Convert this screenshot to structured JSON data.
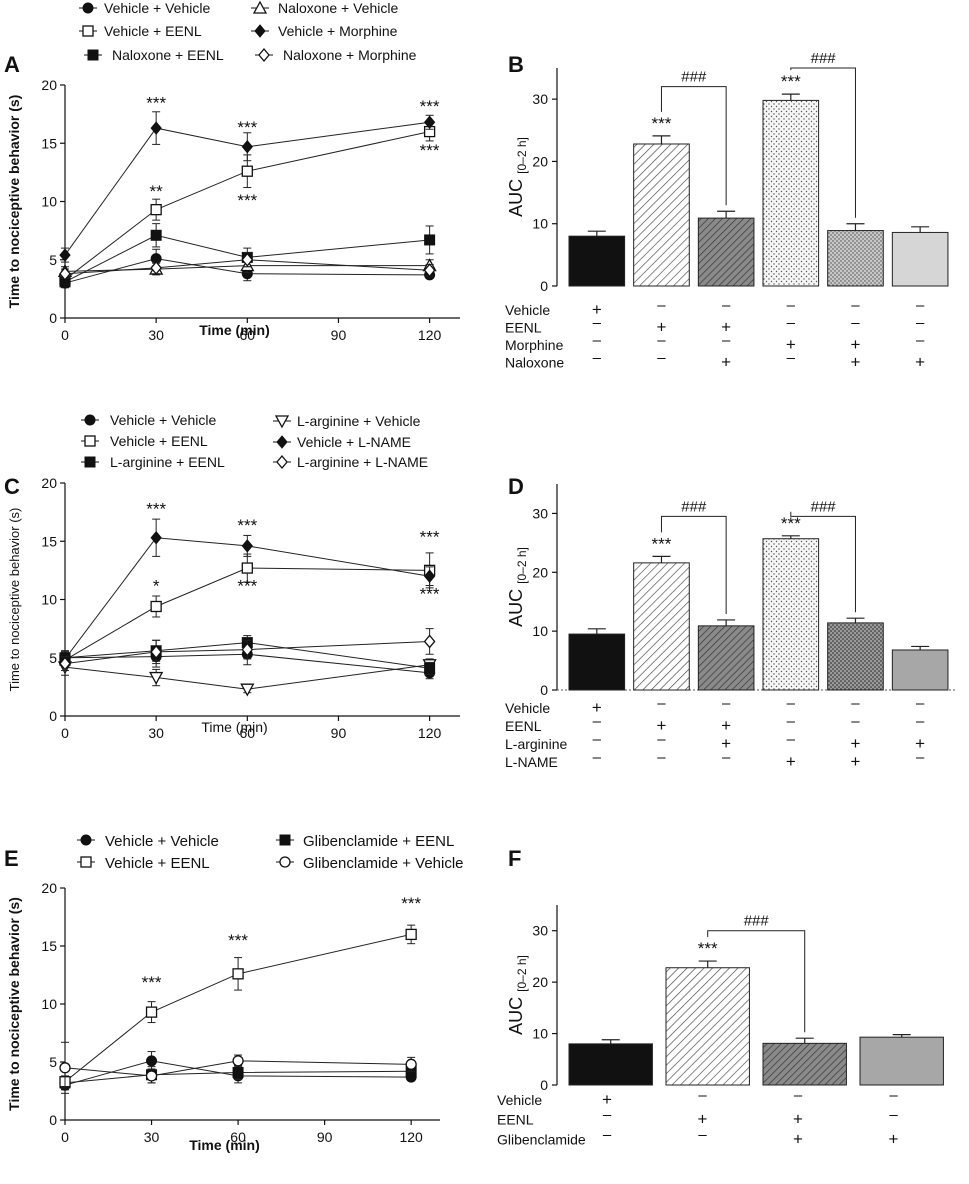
{
  "figure": {
    "panels": [
      {
        "letter": "A",
        "legend": [
          {
            "label": "Vehicle + Vehicle",
            "marker": "filled-circle"
          },
          {
            "label": "Naloxone + Vehicle",
            "marker": "open-triangle-up"
          },
          {
            "label": "Vehicle + EENL",
            "marker": "open-square"
          },
          {
            "label": "Vehicle + Morphine",
            "marker": "filled-diamond"
          },
          {
            "label": "Naloxone + EENL",
            "marker": "filled-square"
          },
          {
            "label": "Naloxone + Morphine",
            "marker": "open-diamond"
          }
        ]
      },
      {
        "letter": "B"
      },
      {
        "letter": "C",
        "legend": [
          {
            "label": "Vehicle + Vehicle",
            "marker": "filled-circle"
          },
          {
            "label": "L-arginine + Vehicle",
            "marker": "open-triangle-down"
          },
          {
            "label": "Vehicle + EENL",
            "marker": "open-square"
          },
          {
            "label": "Vehicle + L-NAME",
            "marker": "filled-diamond"
          },
          {
            "label": "L-arginine + EENL",
            "marker": "filled-square"
          },
          {
            "label": "L-arginine + L-NAME",
            "marker": "open-diamond"
          }
        ]
      },
      {
        "letter": "D"
      },
      {
        "letter": "E",
        "legend": [
          {
            "label": "Vehicle + Vehicle",
            "marker": "filled-circle"
          },
          {
            "label": "Glibenclamide + EENL",
            "marker": "filled-square"
          },
          {
            "label": "Vehicle + EENL",
            "marker": "open-square"
          },
          {
            "label": "Glibenclamide + Vehicle",
            "marker": "open-circle"
          }
        ]
      },
      {
        "letter": "F"
      }
    ]
  },
  "chart_data": [
    {
      "panel": "A",
      "type": "line",
      "xlabel": "Time (min)",
      "ylabel": "Time to nociceptive behavior (s)",
      "x": [
        0,
        30,
        60,
        120
      ],
      "xticks": [
        0,
        30,
        60,
        90,
        120
      ],
      "xlim": [
        0,
        130
      ],
      "ylim": [
        0,
        20
      ],
      "yticks": [
        0,
        5,
        10,
        15,
        20
      ],
      "series": [
        {
          "name": "Vehicle + Vehicle",
          "marker": "filled-circle",
          "values": [
            3.0,
            5.1,
            3.8,
            3.7
          ],
          "errors": [
            0.4,
            0.8,
            0.6,
            0.3
          ]
        },
        {
          "name": "Naloxone + Vehicle",
          "marker": "open-triangle-up",
          "values": [
            4.0,
            4.2,
            4.5,
            4.5
          ],
          "errors": [
            0.4,
            0.5,
            0.6,
            0.5
          ]
        },
        {
          "name": "Vehicle + EENL",
          "marker": "open-square",
          "values": [
            3.3,
            9.3,
            12.6,
            16.0
          ],
          "errors": [
            0.5,
            0.9,
            1.4,
            0.8
          ]
        },
        {
          "name": "Vehicle + Morphine",
          "marker": "filled-diamond",
          "values": [
            5.4,
            16.3,
            14.7,
            16.8
          ],
          "errors": [
            0.6,
            1.4,
            1.2,
            0.6
          ]
        },
        {
          "name": "Naloxone + EENL",
          "marker": "filled-square",
          "values": [
            3.1,
            7.1,
            5.2,
            6.7
          ],
          "errors": [
            0.4,
            1.0,
            0.8,
            1.2
          ]
        },
        {
          "name": "Naloxone + Morphine",
          "marker": "open-diamond",
          "values": [
            3.8,
            4.3,
            5.0,
            4.1
          ],
          "errors": [
            0.4,
            0.5,
            0.6,
            0.5
          ]
        }
      ],
      "annotations": [
        {
          "x": 30,
          "y": 18.0,
          "text": "***"
        },
        {
          "x": 30,
          "y": 10.4,
          "text": "**"
        },
        {
          "x": 60,
          "y": 15.9,
          "text": "***"
        },
        {
          "x": 60,
          "y": 9.6,
          "text": "***"
        },
        {
          "x": 120,
          "y": 17.7,
          "text": "***"
        },
        {
          "x": 120,
          "y": 13.9,
          "text": "***"
        }
      ]
    },
    {
      "panel": "B",
      "type": "bar",
      "ylabel": "AUC",
      "ylabel_subscript": "[0–2 h]",
      "ylim": [
        0,
        35
      ],
      "yticks": [
        0,
        10,
        20,
        30
      ],
      "values": [
        8.0,
        22.8,
        10.9,
        29.8,
        8.9,
        8.6
      ],
      "errors": [
        0.8,
        1.3,
        1.1,
        1.0,
        1.1,
        0.9
      ],
      "fills": [
        "solid-black",
        "hatch-light",
        "hatch-dark",
        "dots",
        "dots-dense",
        "solid-light-gray"
      ],
      "stars": [
        "",
        "***",
        "",
        "***",
        "",
        ""
      ],
      "brackets": [
        {
          "from": 1,
          "to": 2,
          "y": 32.0,
          "text": "###"
        },
        {
          "from": 3,
          "to": 4,
          "y": 35.0,
          "text": "###"
        }
      ],
      "treatments": [
        {
          "name": "Vehicle",
          "signs": [
            "+",
            "-",
            "-",
            "-",
            "-",
            "-"
          ]
        },
        {
          "name": "EENL",
          "signs": [
            "-",
            "+",
            "+",
            "-",
            "-",
            "-"
          ]
        },
        {
          "name": "Morphine",
          "signs": [
            "-",
            "-",
            "-",
            "+",
            "+",
            "-"
          ]
        },
        {
          "name": "Naloxone",
          "signs": [
            "-",
            "-",
            "+",
            "-",
            "+",
            "+"
          ]
        }
      ]
    },
    {
      "panel": "C",
      "type": "line",
      "xlabel": "Time (min)",
      "ylabel": "Time to nociceptive behavior (s)",
      "x": [
        0,
        30,
        60,
        120
      ],
      "xticks": [
        0,
        30,
        60,
        90,
        120
      ],
      "xlim": [
        0,
        130
      ],
      "ylim": [
        0,
        20
      ],
      "yticks": [
        0,
        5,
        10,
        15,
        20
      ],
      "series": [
        {
          "name": "Vehicle + Vehicle",
          "marker": "filled-circle",
          "values": [
            5.0,
            5.1,
            5.3,
            3.7
          ],
          "errors": [
            0.6,
            0.9,
            0.9,
            0.5
          ]
        },
        {
          "name": "L-arginine + Vehicle",
          "marker": "open-triangle-down",
          "values": [
            4.2,
            3.3,
            2.3,
            4.4
          ],
          "errors": [
            0.7,
            0.7,
            0.3,
            0.5
          ]
        },
        {
          "name": "Vehicle + EENL",
          "marker": "open-square",
          "values": [
            4.8,
            9.4,
            12.7,
            12.5
          ],
          "errors": [
            0.6,
            0.9,
            1.2,
            1.5
          ]
        },
        {
          "name": "Vehicle + L-NAME",
          "marker": "filled-diamond",
          "values": [
            4.9,
            15.3,
            14.6,
            12.0
          ],
          "errors": [
            0.6,
            1.6,
            0.9,
            0.8
          ]
        },
        {
          "name": "L-arginine + EENL",
          "marker": "filled-square",
          "values": [
            5.0,
            5.6,
            6.3,
            4.1
          ],
          "errors": [
            0.6,
            0.9,
            0.6,
            0.5
          ]
        },
        {
          "name": "L-arginine + L-NAME",
          "marker": "open-diamond",
          "values": [
            4.5,
            5.5,
            5.7,
            6.4
          ],
          "errors": [
            0.6,
            1.0,
            0.8,
            1.1
          ]
        }
      ],
      "annotations": [
        {
          "x": 30,
          "y": 17.3,
          "text": "***"
        },
        {
          "x": 30,
          "y": 10.7,
          "text": "*"
        },
        {
          "x": 60,
          "y": 15.9,
          "text": "***"
        },
        {
          "x": 60,
          "y": 10.7,
          "text": "***"
        },
        {
          "x": 120,
          "y": 14.9,
          "text": "***"
        },
        {
          "x": 120,
          "y": 10.0,
          "text": "***"
        }
      ]
    },
    {
      "panel": "D",
      "type": "bar",
      "ylabel": "AUC",
      "ylabel_subscript": "[0–2 h]",
      "ylim": [
        0,
        35
      ],
      "yticks": [
        0,
        10,
        20,
        30
      ],
      "values": [
        9.5,
        21.6,
        10.9,
        25.7,
        11.4,
        6.8
      ],
      "errors": [
        0.9,
        1.1,
        1.0,
        0.5,
        0.8,
        0.6
      ],
      "fills": [
        "solid-black",
        "hatch-light",
        "hatch-dark",
        "dots",
        "dots-dense-dark",
        "solid-mid-gray"
      ],
      "stars": [
        "",
        "***",
        "",
        "***",
        "",
        ""
      ],
      "brackets": [
        {
          "from": 1,
          "to": 2,
          "y": 29.5,
          "text": "###"
        },
        {
          "from": 3,
          "to": 4,
          "y": 29.5,
          "text": "###"
        }
      ],
      "treatments": [
        {
          "name": "Vehicle",
          "signs": [
            "+",
            "-",
            "-",
            "-",
            "-",
            "-"
          ]
        },
        {
          "name": "EENL",
          "signs": [
            "-",
            "+",
            "+",
            "-",
            "-",
            "-"
          ]
        },
        {
          "name": "L-arginine",
          "signs": [
            "-",
            "-",
            "+",
            "-",
            "+",
            "+"
          ]
        },
        {
          "name": "L-NAME",
          "signs": [
            "-",
            "-",
            "-",
            "+",
            "+",
            "-"
          ]
        }
      ]
    },
    {
      "panel": "E",
      "type": "line",
      "xlabel": "Time (min)",
      "ylabel": "Time to nociceptive behavior (s)",
      "x": [
        0,
        30,
        60,
        120
      ],
      "xticks": [
        0,
        30,
        60,
        90,
        120
      ],
      "xlim": [
        0,
        130
      ],
      "ylim": [
        0,
        20
      ],
      "yticks": [
        0,
        5,
        10,
        15,
        20
      ],
      "series": [
        {
          "name": "Vehicle + Vehicle",
          "marker": "filled-circle",
          "values": [
            3.0,
            5.1,
            3.8,
            3.7
          ],
          "errors": [
            0.4,
            0.8,
            0.6,
            0.3
          ]
        },
        {
          "name": "Glibenclamide + EENL",
          "marker": "filled-square",
          "values": [
            3.2,
            3.9,
            4.1,
            4.2
          ],
          "errors": [
            0.5,
            0.7,
            0.6,
            0.4
          ]
        },
        {
          "name": "Vehicle + EENL",
          "marker": "open-square",
          "values": [
            3.3,
            9.3,
            12.6,
            16.0
          ],
          "errors": [
            0.5,
            0.9,
            1.4,
            0.8
          ]
        },
        {
          "name": "Glibenclamide + Vehicle",
          "marker": "open-circle",
          "values": [
            4.5,
            3.8,
            5.1,
            4.8
          ],
          "errors": [
            2.2,
            0.6,
            0.5,
            0.6
          ]
        }
      ],
      "annotations": [
        {
          "x": 30,
          "y": 11.4,
          "text": "***"
        },
        {
          "x": 60,
          "y": 15.0,
          "text": "***"
        },
        {
          "x": 120,
          "y": 18.2,
          "text": "***"
        }
      ]
    },
    {
      "panel": "F",
      "type": "bar",
      "ylabel": "AUC",
      "ylabel_subscript": "[0–2 h]",
      "ylim": [
        0,
        35
      ],
      "yticks": [
        0,
        10,
        20,
        30
      ],
      "values": [
        8.0,
        22.8,
        8.1,
        9.3
      ],
      "errors": [
        0.8,
        1.3,
        1.0,
        0.5
      ],
      "fills": [
        "solid-black",
        "hatch-light",
        "hatch-dark",
        "solid-mid-gray"
      ],
      "stars": [
        "",
        "***",
        "",
        ""
      ],
      "brackets": [
        {
          "from": 1,
          "to": 2,
          "y": 30.0,
          "text": "###"
        }
      ],
      "treatments": [
        {
          "name": "Vehicle",
          "signs": [
            "+",
            "-",
            "-",
            "-"
          ]
        },
        {
          "name": "EENL",
          "signs": [
            "-",
            "+",
            "+",
            "-"
          ]
        },
        {
          "name": "Glibenclamide",
          "signs": [
            "-",
            "-",
            "+",
            "+"
          ]
        }
      ]
    }
  ]
}
